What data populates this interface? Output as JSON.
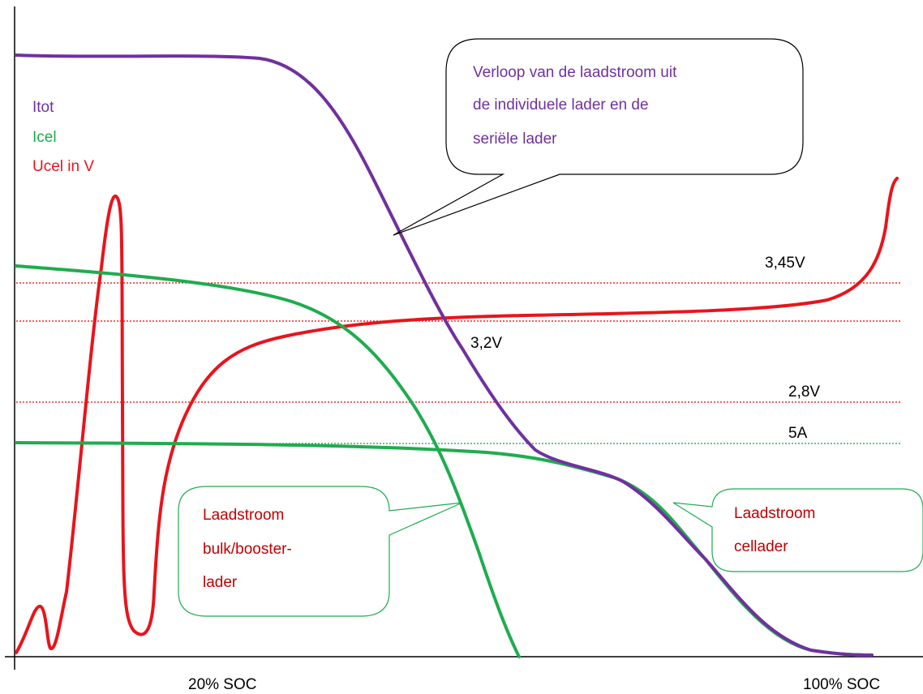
{
  "legend": {
    "items": [
      "Itot",
      "Icel",
      "Ucel in V"
    ]
  },
  "levels": [
    "3,45V",
    "3,2V",
    "2,8V",
    "5A"
  ],
  "callouts": [
    {
      "lines": [
        "Verloop van de laadstroom uit",
        "de individuele lader en de",
        "seriële lader"
      ]
    },
    {
      "lines": [
        "Laadstroom",
        "bulk/booster-",
        "lader"
      ]
    },
    {
      "lines": [
        "Laadstroom",
        "cellader"
      ]
    }
  ],
  "x_axis": {
    "labels": [
      "20% SOC",
      "100% SOC"
    ]
  }
}
